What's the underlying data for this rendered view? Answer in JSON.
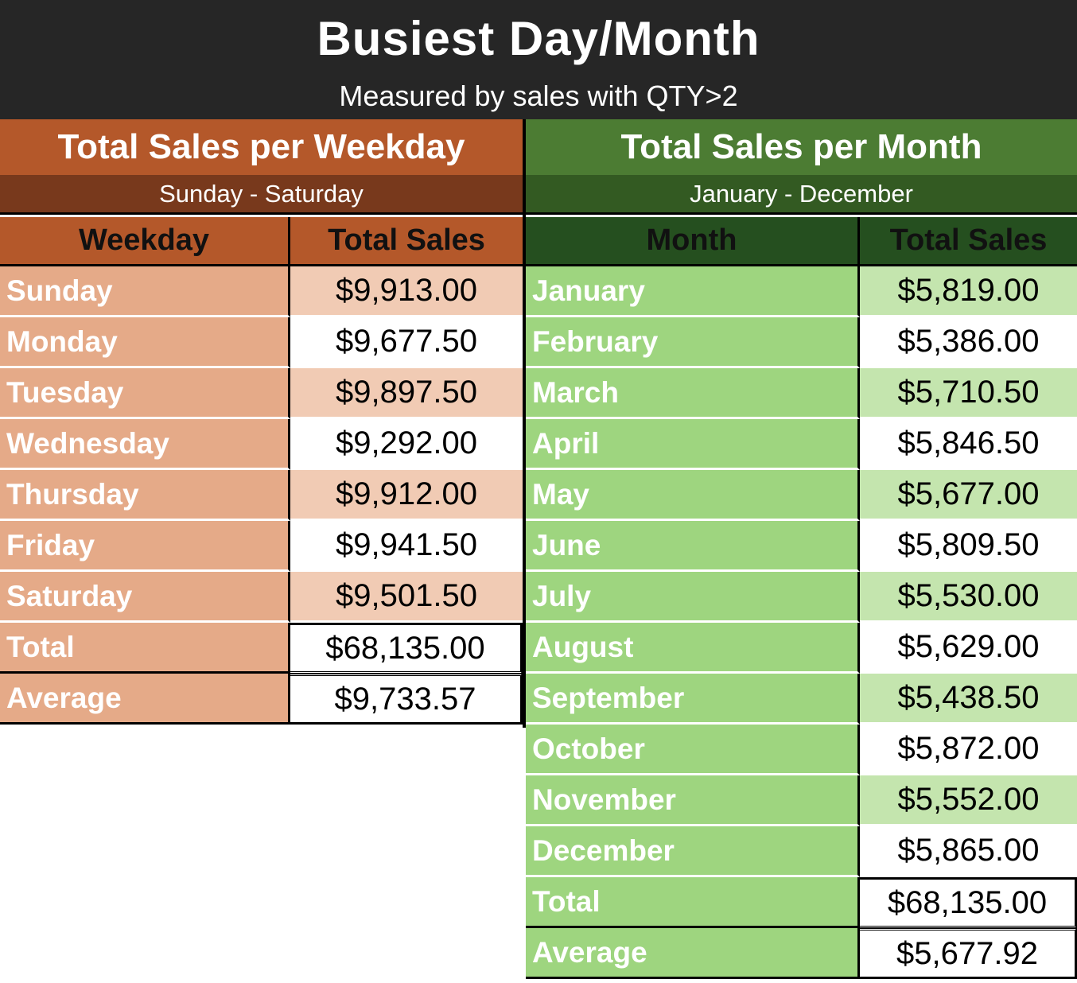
{
  "header": {
    "title": "Busiest Day/Month",
    "subtitle": "Measured by sales with QTY>2"
  },
  "colors": {
    "header_bg": "#262626",
    "weekday_banner": "#B4582A",
    "weekday_subbanner": "#78391C",
    "weekday_label_bg": "#E5AA88",
    "weekday_alt_value_bg": "#F1CBB4",
    "month_banner": "#4C7C33",
    "month_subbanner": "#335A22",
    "month_colhead": "#254F1F",
    "month_label_bg": "#9ED57F",
    "month_alt_value_bg": "#C4E5AE"
  },
  "weekday_table": {
    "title": "Total Sales per Weekday",
    "subtitle": "Sunday - Saturday",
    "col1": "Weekday",
    "col2": "Total Sales",
    "rows": [
      {
        "label": "Sunday",
        "value": "$9,913.00"
      },
      {
        "label": "Monday",
        "value": "$9,677.50"
      },
      {
        "label": "Tuesday",
        "value": "$9,897.50"
      },
      {
        "label": "Wednesday",
        "value": "$9,292.00"
      },
      {
        "label": "Thursday",
        "value": "$9,912.00"
      },
      {
        "label": "Friday",
        "value": "$9,941.50"
      },
      {
        "label": "Saturday",
        "value": "$9,501.50"
      }
    ],
    "total_label": "Total",
    "total_value": "$68,135.00",
    "average_label": "Average",
    "average_value": "$9,733.57"
  },
  "month_table": {
    "title": "Total Sales per Month",
    "subtitle": "January - December",
    "col1": "Month",
    "col2": "Total Sales",
    "rows": [
      {
        "label": "January",
        "value": "$5,819.00"
      },
      {
        "label": "February",
        "value": "$5,386.00"
      },
      {
        "label": "March",
        "value": "$5,710.50"
      },
      {
        "label": "April",
        "value": "$5,846.50"
      },
      {
        "label": "May",
        "value": "$5,677.00"
      },
      {
        "label": "June",
        "value": "$5,809.50"
      },
      {
        "label": "July",
        "value": "$5,530.00"
      },
      {
        "label": "August",
        "value": "$5,629.00"
      },
      {
        "label": "September",
        "value": "$5,438.50"
      },
      {
        "label": "October",
        "value": "$5,872.00"
      },
      {
        "label": "November",
        "value": "$5,552.00"
      },
      {
        "label": "December",
        "value": "$5,865.00"
      }
    ],
    "total_label": "Total",
    "total_value": "$68,135.00",
    "average_label": "Average",
    "average_value": "$5,677.92"
  }
}
